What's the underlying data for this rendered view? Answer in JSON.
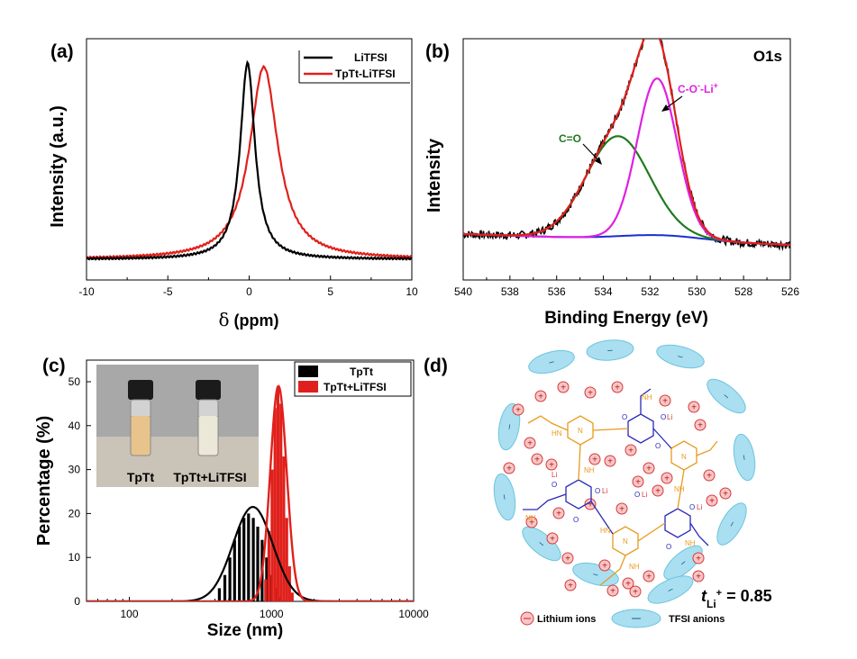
{
  "colors": {
    "black": "#000000",
    "red": "#e0201c",
    "green": "#1f7a1f",
    "magenta": "#e020e0",
    "blue": "#1a2fd0",
    "gray_panel": "#9a9a9a",
    "cyan_ellipse": "#a9dff0",
    "cyan_edge": "#6cc4e0",
    "ion_fill": "#f8c6c6",
    "ion_edge": "#d53a3a",
    "orange_mol": "#e89a1e",
    "blue_mol": "#2a2ab8"
  },
  "chart_data": [
    {
      "panel_label": "(a)",
      "type": "line",
      "xlabel_symbol": "δ",
      "xlabel_unit": "(ppm)",
      "ylabel": "Intensity (a.u.)",
      "xlim": [
        -10,
        10
      ],
      "ylim": [
        0,
        1.1
      ],
      "xticks": [
        -10,
        -5,
        0,
        5,
        10
      ],
      "legend": [
        {
          "name": "LiTFSI",
          "color": "#000000"
        },
        {
          "name": "TpTt-LiTFSI",
          "color": "#e0201c"
        }
      ],
      "series": [
        {
          "name": "LiTFSI",
          "color": "#000000",
          "x0": -0.1,
          "gamma": 0.55,
          "amplitude": 1.0,
          "baseline": 0.0
        },
        {
          "name": "TpTt-LiTFSI",
          "color": "#e0201c",
          "x0": 0.9,
          "gamma": 1.05,
          "amplitude": 0.98,
          "baseline": 0.0
        }
      ]
    },
    {
      "panel_label": "(b)",
      "type": "line",
      "title": "O1s",
      "xlabel": "Binding Energy (eV)",
      "ylabel": "Intensity",
      "xlim": [
        540,
        526
      ],
      "xticks": [
        540,
        538,
        536,
        534,
        532,
        530,
        528,
        526
      ],
      "annotations": [
        {
          "text": "C=O",
          "color": "#1f7a1f",
          "x_data": 533.3
        },
        {
          "text": "C-O",
          "sup1": "-",
          "text2": "-Li",
          "sup2": "+",
          "color": "#e020e0",
          "x_data": 531.6
        }
      ],
      "components": [
        {
          "name": "C=O",
          "color": "#1f7a1f",
          "center": 533.4,
          "sigma": 1.35,
          "height": 0.37
        },
        {
          "name": "C-O--Li+",
          "color": "#e020e0",
          "center": 531.7,
          "sigma": 0.85,
          "height": 0.58
        },
        {
          "name": "Background",
          "color": "#1a2fd0"
        },
        {
          "name": "Fit",
          "color": "#e0201c"
        },
        {
          "name": "Raw",
          "color": "#000000"
        }
      ]
    },
    {
      "panel_label": "(c)",
      "type": "bar",
      "xlabel": "Size (nm)",
      "ylabel": "Percentage (%)",
      "xscale": "log",
      "xlim": [
        50,
        10000
      ],
      "ylim": [
        0,
        50
      ],
      "xticks": [
        100,
        1000,
        10000
      ],
      "yticks": [
        0,
        10,
        20,
        30,
        40,
        50
      ],
      "legend": [
        {
          "name": "TpTt",
          "color": "#000000"
        },
        {
          "name": "TpTt+LiTFSI",
          "color": "#e0201c"
        }
      ],
      "series": [
        {
          "name": "TpTt",
          "color": "#000000",
          "x": [
            430,
            470,
            510,
            550,
            595,
            640,
            690,
            745,
            800,
            860,
            925,
            995,
            1070,
            1150
          ],
          "values": [
            3,
            6,
            10,
            14,
            17,
            19,
            20,
            19,
            17,
            14,
            10,
            6,
            3,
            1
          ],
          "fit": {
            "center": 740,
            "log_sigma": 0.14,
            "height": 21.5
          }
        },
        {
          "name": "TpTt+LiTFSI",
          "color": "#e0201c",
          "x": [
            910,
            960,
            1010,
            1060,
            1110,
            1165,
            1220,
            1280,
            1340,
            1400
          ],
          "values": [
            5,
            16,
            30,
            44,
            49,
            45,
            33,
            19,
            8,
            2
          ],
          "fit": {
            "center": 1120,
            "log_sigma": 0.058,
            "height": 49
          }
        }
      ],
      "inset": {
        "vial_labels": [
          "TpTt",
          "TpTt+LiTFSI"
        ]
      }
    }
  ],
  "panel_d": {
    "label": "(d)",
    "t_symbol": "t",
    "t_sub": "Li",
    "t_sup": "+",
    "t_value": "= 0.85",
    "legend": {
      "ion_label": "Lithium ions",
      "anion_label": "TFSI anions"
    },
    "ion_plus": "+",
    "ion_minus": "−",
    "mol_labels": {
      "nh": "NH",
      "hn": "HN",
      "o": "O",
      "li": "Li",
      "n": "N"
    }
  }
}
